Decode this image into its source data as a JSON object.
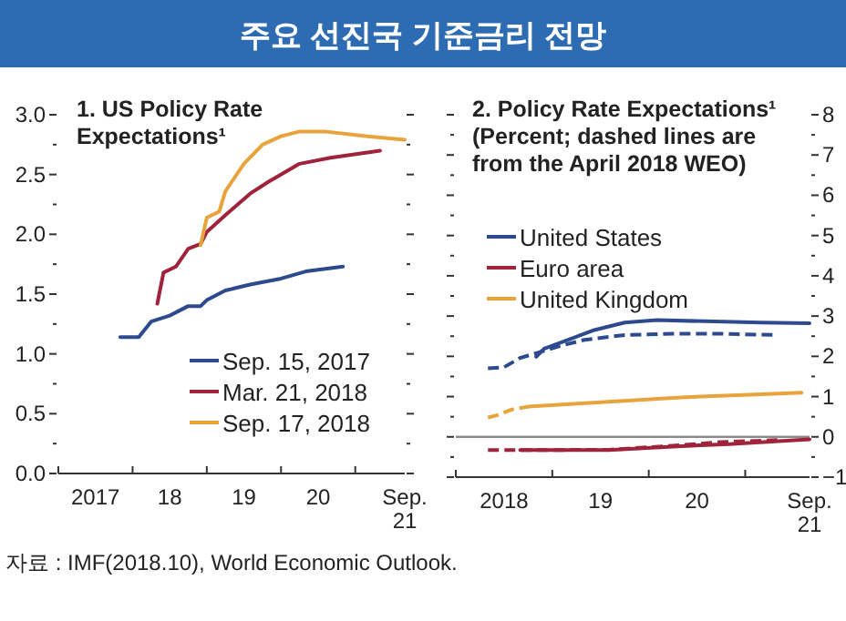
{
  "chart_data": [
    {
      "type": "line",
      "title": "1. US Policy Rate\nExpectations¹",
      "annotations": [
        "주요 선진국 기준금리 전망",
        "자료 : IMF(2018.10), World Economic Outlook."
      ],
      "xlim": [
        "2017-01",
        "2021-09"
      ],
      "xticks": [
        {
          "value": "2017-01",
          "label": null
        },
        {
          "value": "2017-07",
          "label": "2017"
        },
        {
          "value": "2018-01",
          "label": null
        },
        {
          "value": "2018-07",
          "label": "18"
        },
        {
          "value": "2019-01",
          "label": null
        },
        {
          "value": "2019-07",
          "label": "19"
        },
        {
          "value": "2020-01",
          "label": null
        },
        {
          "value": "2020-07",
          "label": "20"
        },
        {
          "value": "2021-01",
          "label": null
        },
        {
          "value": "2021-09",
          "label": "Sep.\n21"
        }
      ],
      "ylim": [
        0,
        3
      ],
      "yticks": [
        {
          "value": 0,
          "label": "0.0"
        },
        {
          "value": 0.25,
          "label": null
        },
        {
          "value": 0.5,
          "label": "0.5"
        },
        {
          "value": 0.75,
          "label": null
        },
        {
          "value": 1,
          "label": "1.0"
        },
        {
          "value": 1.25,
          "label": null
        },
        {
          "value": 1.5,
          "label": "1.5"
        },
        {
          "value": 1.75,
          "label": null
        },
        {
          "value": 2,
          "label": "2.0"
        },
        {
          "value": 2.25,
          "label": null
        },
        {
          "value": 2.5,
          "label": "2.5"
        },
        {
          "value": 2.75,
          "label": null
        },
        {
          "value": 3,
          "label": "3.0"
        }
      ],
      "legend": "bottom right",
      "series": [
        {
          "name": "Sep. 15, 2017",
          "color": "#2e4a8e",
          "x": [
            "2017-11",
            "2018-02",
            "2018-04",
            "2018-07",
            "2018-10",
            "2018-12",
            "2019-01",
            "2019-04",
            "2019-08",
            "2020-01",
            "2020-05",
            "2020-11"
          ],
          "values": [
            1.14,
            1.14,
            1.27,
            1.32,
            1.4,
            1.4,
            1.45,
            1.53,
            1.58,
            1.63,
            1.69,
            1.73
          ]
        },
        {
          "name": "Mar. 21, 2018",
          "color": "#a0233c",
          "x": [
            "2018-05",
            "2018-06",
            "2018-08",
            "2018-10",
            "2018-12",
            "2019-01",
            "2019-04",
            "2019-08",
            "2019-11",
            "2020-04",
            "2020-09",
            "2021-05"
          ],
          "values": [
            1.42,
            1.68,
            1.73,
            1.88,
            1.92,
            2.02,
            2.16,
            2.34,
            2.44,
            2.59,
            2.64,
            2.7
          ]
        },
        {
          "name": "Sep. 17, 2018",
          "color": "#e8a33c",
          "x": [
            "2018-12",
            "2019-01",
            "2019-03",
            "2019-04",
            "2019-07",
            "2019-10",
            "2020-01",
            "2020-04",
            "2020-08",
            "2021-03",
            "2021-09"
          ],
          "values": [
            1.91,
            2.14,
            2.19,
            2.36,
            2.59,
            2.75,
            2.82,
            2.86,
            2.86,
            2.82,
            2.79
          ]
        }
      ]
    },
    {
      "type": "line",
      "title": "2. Policy Rate Expectations¹\n(Percent; dashed lines are\nfrom the April 2018 WEO)",
      "xlim": [
        "2018-01",
        "2021-09"
      ],
      "xticks": [
        {
          "value": "2018-01",
          "label": null
        },
        {
          "value": "2018-07",
          "label": "2018"
        },
        {
          "value": "2019-01",
          "label": null
        },
        {
          "value": "2019-07",
          "label": "19"
        },
        {
          "value": "2020-01",
          "label": null
        },
        {
          "value": "2020-07",
          "label": "20"
        },
        {
          "value": "2021-01",
          "label": null
        },
        {
          "value": "2021-09",
          "label": "Sep.\n21"
        }
      ],
      "y2lim": [
        -1,
        8
      ],
      "y2ticks": [
        {
          "value": -1,
          "label": "−1"
        },
        {
          "value": -0.5,
          "label": null
        },
        0,
        {
          "value": 0.5,
          "label": null
        },
        1,
        {
          "value": 1.5,
          "label": null
        },
        2,
        {
          "value": 2.5,
          "label": null
        },
        3,
        {
          "value": 3.5,
          "label": null
        },
        4,
        {
          "value": 4.5,
          "label": null
        },
        5,
        {
          "value": 5.5,
          "label": null
        },
        6,
        {
          "value": 6.5,
          "label": null
        },
        7,
        {
          "value": 7.5,
          "label": null
        },
        8
      ],
      "legend": "top left",
      "ref_lines": [
        {
          "axis": "y2",
          "value": 0,
          "color": "#8c8c8c"
        }
      ],
      "series": [
        {
          "name": "United States",
          "color": "#2e4a8e",
          "axis": "y2",
          "x": [
            "2018-11",
            "2018-12",
            "2019-03",
            "2019-06",
            "2019-10",
            "2020-02",
            "2020-08",
            "2021-03",
            "2021-09"
          ],
          "values": [
            1.99,
            2.19,
            2.41,
            2.64,
            2.84,
            2.9,
            2.87,
            2.84,
            2.82
          ]
        },
        {
          "name": "Euro area",
          "color": "#a0233c",
          "axis": "y2",
          "x": [
            "2018-09",
            "2019-08",
            "2020-04",
            "2020-11",
            "2021-09"
          ],
          "values": [
            -0.33,
            -0.33,
            -0.24,
            -0.18,
            -0.06
          ]
        },
        {
          "name": "United Kingdom",
          "color": "#e8a33c",
          "axis": "y2",
          "x": [
            "2018-10",
            "2019-08",
            "2020-05",
            "2021-03",
            "2021-08"
          ],
          "values": [
            0.75,
            0.87,
            0.98,
            1.06,
            1.1
          ]
        },
        {
          "color": "#2e4a8e",
          "axis": "y2",
          "line_style": "dashed",
          "x": [
            "2018-05",
            "2018-07",
            "2018-09",
            "2018-11",
            "2019-02",
            "2019-05",
            "2019-10",
            "2020-04",
            "2020-10",
            "2021-05"
          ],
          "values": [
            1.7,
            1.73,
            1.96,
            2.08,
            2.26,
            2.41,
            2.53,
            2.56,
            2.56,
            2.53
          ]
        },
        {
          "color": "#a0233c",
          "axis": "y2",
          "line_style": "dashed",
          "x": [
            "2018-05",
            "2018-09",
            "2019-08",
            "2020-04",
            "2020-10",
            "2021-05"
          ],
          "values": [
            -0.33,
            -0.33,
            -0.32,
            -0.22,
            -0.13,
            -0.08
          ]
        },
        {
          "color": "#e8a33c",
          "axis": "y2",
          "line_style": "dashed",
          "x": [
            "2018-05",
            "2018-06",
            "2018-08",
            "2018-10"
          ],
          "values": [
            0.48,
            0.53,
            0.68,
            0.75
          ]
        }
      ]
    }
  ]
}
